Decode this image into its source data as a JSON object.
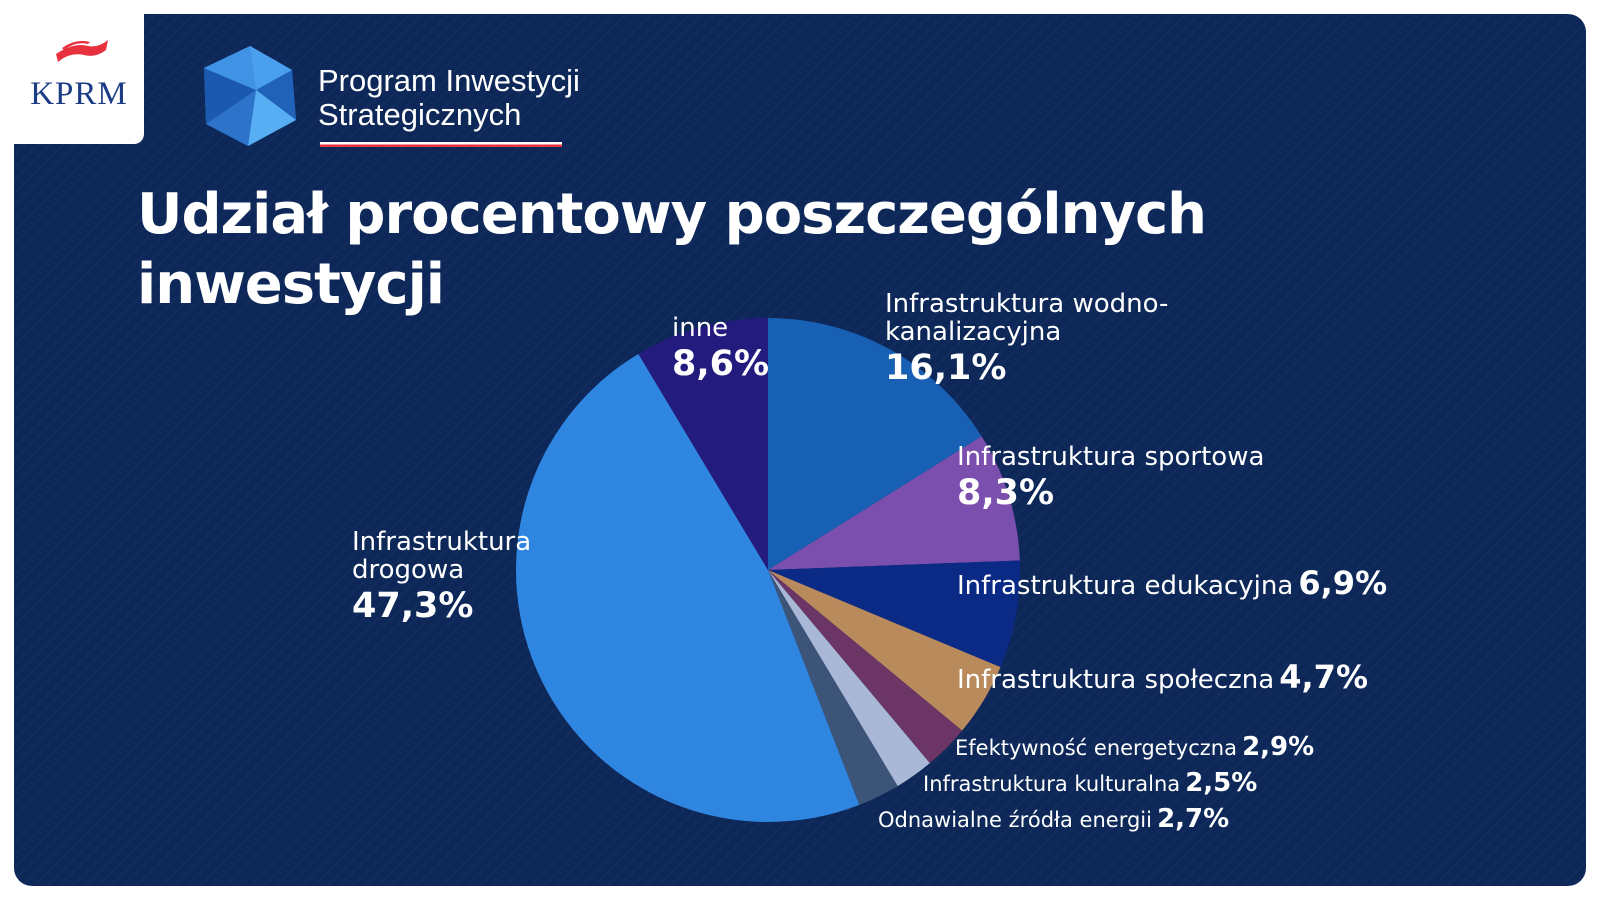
{
  "brand": {
    "kprm": "KPRM",
    "program_line1": "Program Inwestycji",
    "program_line2": "Strategicznych"
  },
  "title": "Udział procentowy poszczególnych inwestycji",
  "colors": {
    "background": "#0c2758",
    "accent_red": "#e8313f",
    "logo_blue": "#2f7fd8"
  },
  "chart_data": {
    "type": "pie",
    "title": "Udział procentowy poszczególnych inwestycji",
    "start": "12 o'clock, clockwise",
    "slices": [
      {
        "label": "Infrastruktura wodno-kanalizacyjna",
        "value": 16.1,
        "display": "16,1%",
        "color": "#1760b4"
      },
      {
        "label": "Infrastruktura sportowa",
        "value": 8.3,
        "display": "8,3%",
        "color": "#7b4fae"
      },
      {
        "label": "Infrastruktura edukacyjna",
        "value": 6.9,
        "display": "6,9%",
        "color": "#0b2a86"
      },
      {
        "label": "Infrastruktura społeczna",
        "value": 4.7,
        "display": "4,7%",
        "color": "#b98a5c"
      },
      {
        "label": "Efektywność energetyczna",
        "value": 2.9,
        "display": "2,9%",
        "color": "#6b3566"
      },
      {
        "label": "Infrastruktura kulturalna",
        "value": 2.5,
        "display": "2,5%",
        "color": "#a8b8d6"
      },
      {
        "label": "Odnawialne źródła energii",
        "value": 2.7,
        "display": "2,7%",
        "color": "#3c5478"
      },
      {
        "label": "Infrastruktura drogowa",
        "value": 47.3,
        "display": "47,3%",
        "color": "#2f86e0"
      },
      {
        "label": "inne",
        "value": 8.6,
        "display": "8,6%",
        "color": "#231b7e"
      }
    ]
  }
}
